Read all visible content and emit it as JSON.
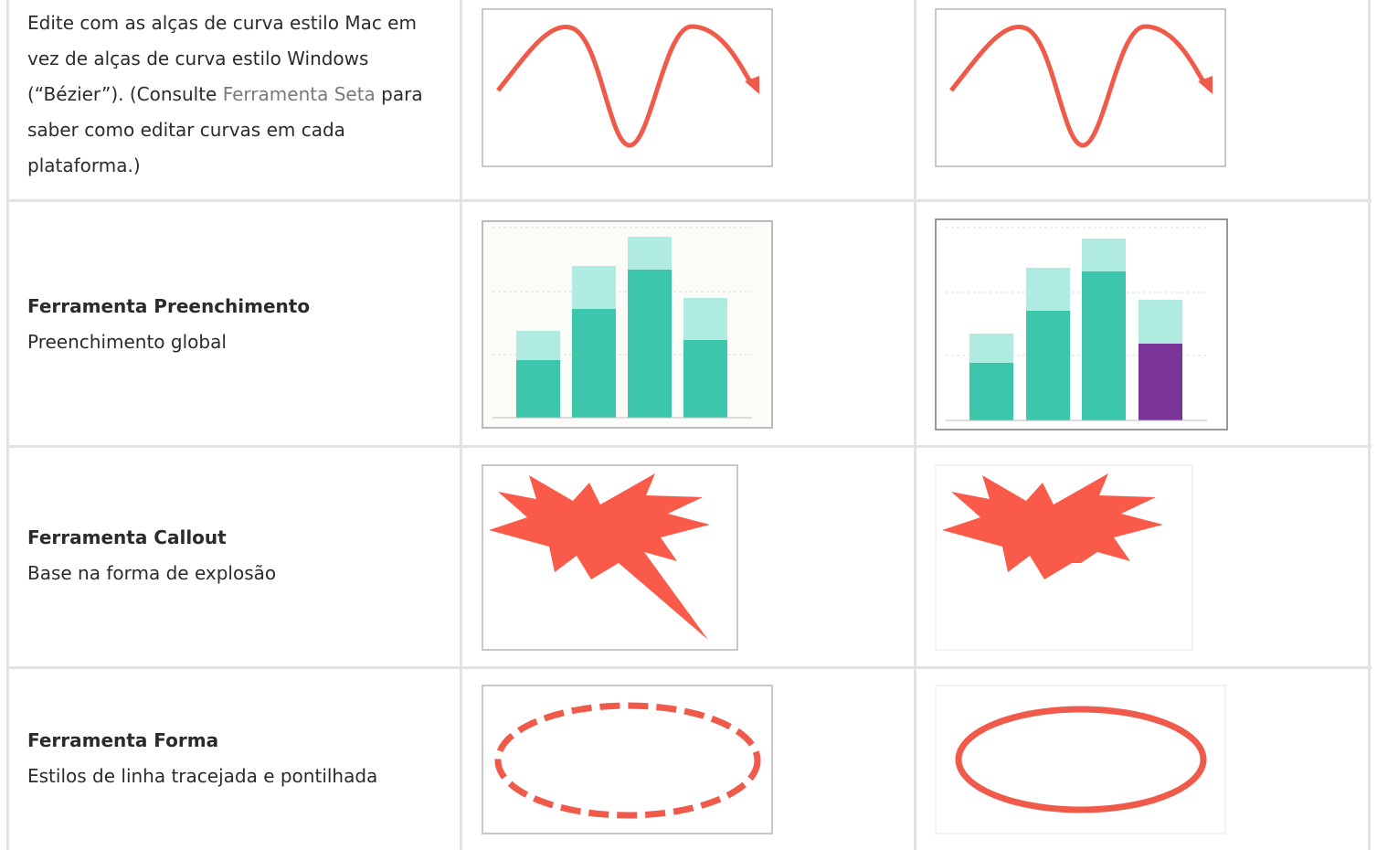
{
  "table": {
    "rows": [
      {
        "text_before": "Edite com as alças de curva estilo Mac em vez de alças de curva estilo Windows (“Bézier”). (Consulte",
        "link": "Ferramenta Seta",
        "text_after": "para saber como editar curvas em cada plataforma.)"
      },
      {
        "title": "Ferramenta Preenchimento",
        "description": "Preenchimento global"
      },
      {
        "title": "Ferramenta Callout",
        "description": "Base na forma de explosão"
      },
      {
        "title": "Ferramenta Forma",
        "description": "Estilos de linha tracejada e pontilhada"
      }
    ]
  }
}
